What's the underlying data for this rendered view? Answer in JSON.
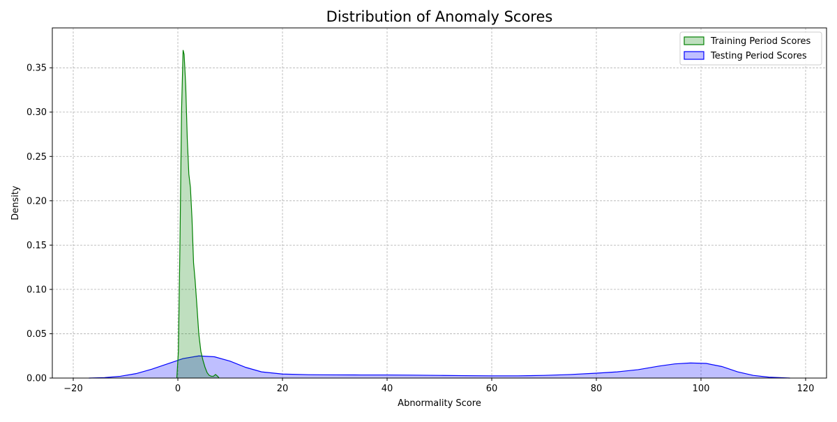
{
  "chart_data": {
    "type": "area",
    "title": "Distribution of Anomaly Scores",
    "xlabel": "Abnormality Score",
    "ylabel": "Density",
    "xlim": [
      -24,
      124
    ],
    "ylim": [
      0,
      0.395
    ],
    "xticks": [
      -20,
      0,
      20,
      40,
      60,
      80,
      100,
      120
    ],
    "yticks": [
      0.0,
      0.05,
      0.1,
      0.15,
      0.2,
      0.25,
      0.3,
      0.35
    ],
    "xtick_labels": [
      "−20",
      "0",
      "20",
      "40",
      "60",
      "80",
      "100",
      "120"
    ],
    "ytick_labels": [
      "0.00",
      "0.05",
      "0.10",
      "0.15",
      "0.20",
      "0.25",
      "0.30",
      "0.35"
    ],
    "grid": true,
    "legend_position": "top-right",
    "series": [
      {
        "name": "Training Period Scores",
        "line_color": "#008000",
        "fill_color": "#008000",
        "fill_opacity": 0.25,
        "x": [
          -0.2,
          0.1,
          0.4,
          0.7,
          1.0,
          1.2,
          1.5,
          1.8,
          2.1,
          2.4,
          2.7,
          3.0,
          3.3,
          3.6,
          4.0,
          4.4,
          4.8,
          5.2,
          5.6,
          6.0,
          6.4,
          6.8,
          7.2,
          7.6,
          7.9
        ],
        "y": [
          0.0,
          0.03,
          0.15,
          0.3,
          0.37,
          0.365,
          0.33,
          0.27,
          0.23,
          0.215,
          0.18,
          0.13,
          0.11,
          0.085,
          0.05,
          0.03,
          0.02,
          0.012,
          0.006,
          0.003,
          0.002,
          0.002,
          0.004,
          0.002,
          0.0
        ]
      },
      {
        "name": "Testing Period Scores",
        "line_color": "#0000ff",
        "fill_color": "#0000ff",
        "fill_opacity": 0.25,
        "x": [
          -17,
          -14,
          -11,
          -8,
          -5,
          -2,
          1,
          4,
          7,
          10,
          13,
          16,
          20,
          25,
          30,
          35,
          40,
          45,
          50,
          55,
          60,
          65,
          70,
          75,
          80,
          84,
          88,
          92,
          95,
          98,
          101,
          104,
          107,
          110,
          113,
          117
        ],
        "y": [
          0.0,
          0.0005,
          0.002,
          0.005,
          0.01,
          0.016,
          0.022,
          0.025,
          0.024,
          0.019,
          0.012,
          0.007,
          0.0045,
          0.0038,
          0.0036,
          0.0035,
          0.0035,
          0.0033,
          0.003,
          0.0027,
          0.0025,
          0.0025,
          0.003,
          0.004,
          0.0055,
          0.007,
          0.0095,
          0.0135,
          0.016,
          0.017,
          0.0165,
          0.013,
          0.007,
          0.003,
          0.001,
          0.0
        ]
      }
    ]
  }
}
